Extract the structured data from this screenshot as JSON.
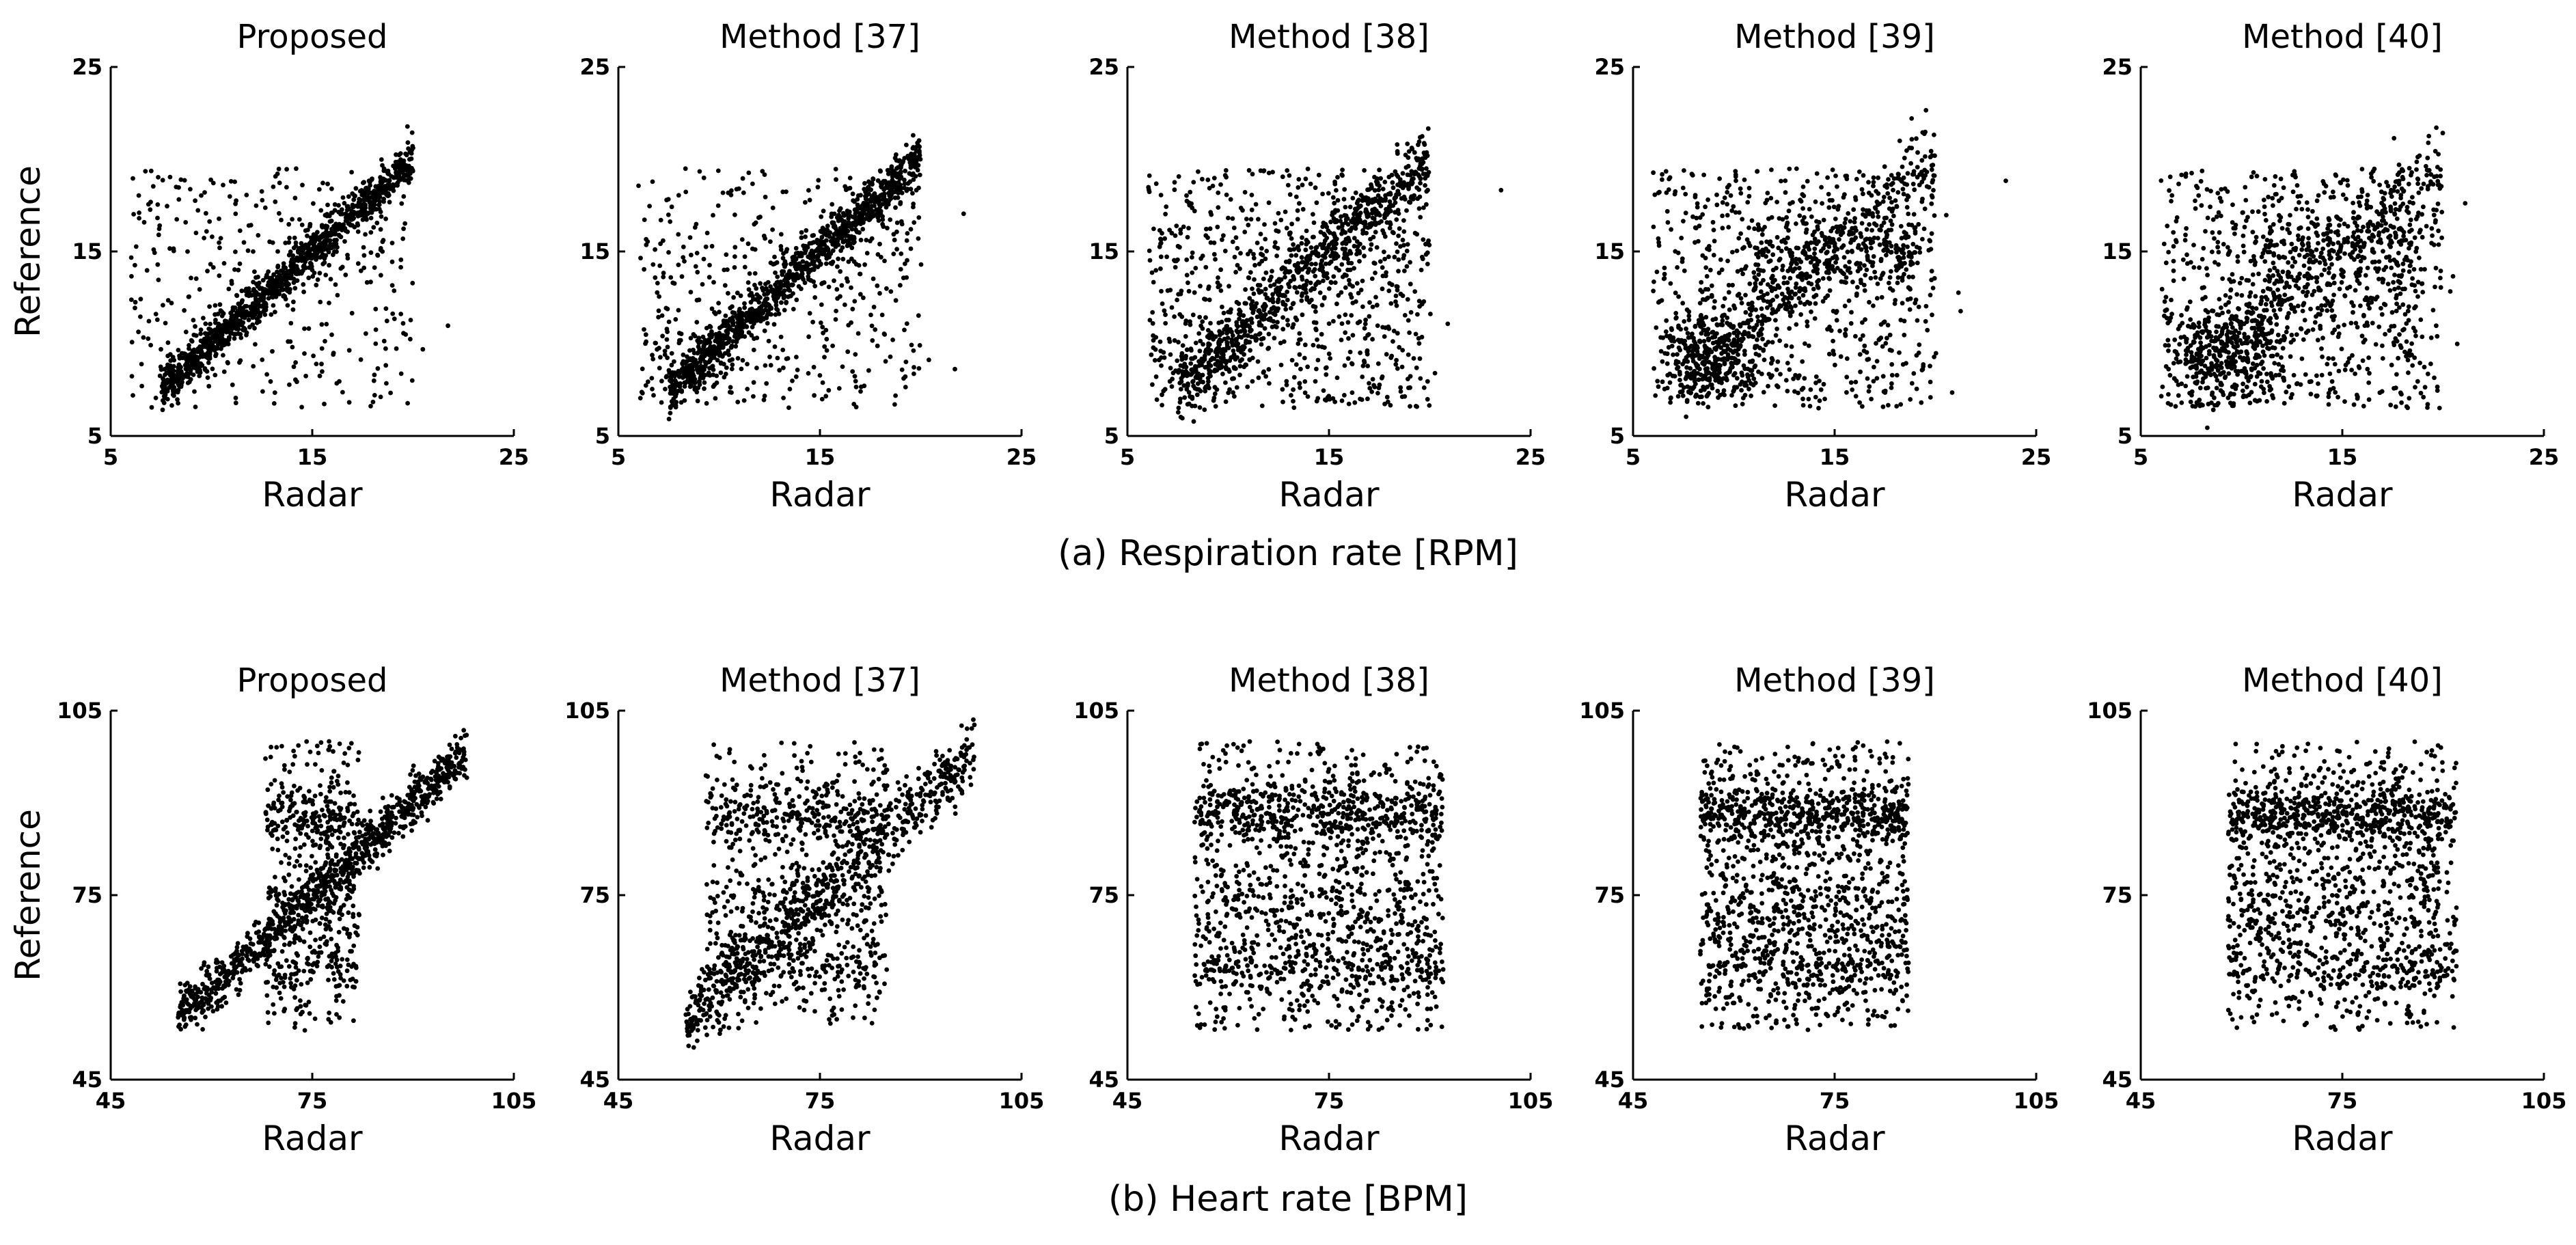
{
  "figure": {
    "captions": [
      "(a) Respiration rate [RPM]",
      "(b) Heart rate [BPM]"
    ]
  },
  "chart_data": [
    {
      "type": "scatter",
      "row": 0,
      "col": 0,
      "title": "Proposed",
      "xlabel": "Radar",
      "ylabel": "Reference",
      "xlim": [
        5,
        25
      ],
      "ylim": [
        5,
        25
      ],
      "xticks": [
        5,
        15,
        25
      ],
      "yticks": [
        5,
        15,
        25
      ],
      "grid": false,
      "pattern": {
        "kind": "rr",
        "diag": 0.74,
        "spread": 0.55,
        "uniform": 0.14,
        "band": 0.06,
        "seed": 11
      }
    },
    {
      "type": "scatter",
      "row": 0,
      "col": 1,
      "title": "Method [37]",
      "xlabel": "Radar",
      "ylabel": "",
      "xlim": [
        5,
        25
      ],
      "ylim": [
        5,
        25
      ],
      "xticks": [
        5,
        15,
        25
      ],
      "yticks": [
        5,
        15,
        25
      ],
      "grid": false,
      "pattern": {
        "kind": "rr",
        "diag": 0.66,
        "spread": 0.65,
        "uniform": 0.2,
        "band": 0.08,
        "seed": 23
      }
    },
    {
      "type": "scatter",
      "row": 0,
      "col": 2,
      "title": "Method [38]",
      "xlabel": "Radar",
      "ylabel": "",
      "xlim": [
        5,
        25
      ],
      "ylim": [
        5,
        25
      ],
      "xticks": [
        5,
        15,
        25
      ],
      "yticks": [
        5,
        15,
        25
      ],
      "grid": false,
      "pattern": {
        "kind": "rr",
        "diag": 0.45,
        "spread": 0.95,
        "uniform": 0.4,
        "band": 0.1,
        "seed": 37
      }
    },
    {
      "type": "scatter",
      "row": 0,
      "col": 3,
      "title": "Method [39]",
      "xlabel": "Radar",
      "ylabel": "",
      "xlim": [
        5,
        25
      ],
      "ylim": [
        5,
        25
      ],
      "xticks": [
        5,
        15,
        25
      ],
      "yticks": [
        5,
        15,
        25
      ],
      "grid": false,
      "pattern": {
        "kind": "rr",
        "diag": 0.26,
        "spread": 1.2,
        "uniform": 0.36,
        "band": 0.32,
        "seed": 41
      }
    },
    {
      "type": "scatter",
      "row": 0,
      "col": 4,
      "title": "Method [40]",
      "xlabel": "Radar",
      "ylabel": "",
      "xlim": [
        5,
        25
      ],
      "ylim": [
        5,
        25
      ],
      "xticks": [
        5,
        15,
        25
      ],
      "yticks": [
        5,
        15,
        25
      ],
      "grid": false,
      "pattern": {
        "kind": "rr",
        "diag": 0.2,
        "spread": 1.3,
        "uniform": 0.45,
        "band": 0.3,
        "seed": 53
      }
    },
    {
      "type": "scatter",
      "row": 1,
      "col": 0,
      "title": "Proposed",
      "xlabel": "Radar",
      "ylabel": "Reference",
      "xlim": [
        45,
        105
      ],
      "ylim": [
        45,
        105
      ],
      "xticks": [
        45,
        75,
        105
      ],
      "yticks": [
        45,
        75,
        105
      ],
      "grid": false,
      "pattern": {
        "kind": "hr",
        "diag": 0.62,
        "spread": 2.0,
        "uniform": 0.12,
        "band": 0.22,
        "cx": [
          68,
          82
        ],
        "seed": 61
      }
    },
    {
      "type": "scatter",
      "row": 1,
      "col": 1,
      "title": "Method [37]",
      "xlabel": "Radar",
      "ylabel": "",
      "xlim": [
        45,
        105
      ],
      "ylim": [
        45,
        105
      ],
      "xticks": [
        45,
        75,
        105
      ],
      "yticks": [
        45,
        75,
        105
      ],
      "grid": false,
      "pattern": {
        "kind": "hr",
        "diag": 0.45,
        "spread": 2.8,
        "uniform": 0.2,
        "band": 0.32,
        "cx": [
          58,
          85
        ],
        "seed": 73
      }
    },
    {
      "type": "scatter",
      "row": 1,
      "col": 2,
      "title": "Method [38]",
      "xlabel": "Radar",
      "ylabel": "",
      "xlim": [
        45,
        105
      ],
      "ylim": [
        45,
        105
      ],
      "xticks": [
        45,
        75,
        105
      ],
      "yticks": [
        45,
        75,
        105
      ],
      "grid": false,
      "pattern": {
        "kind": "hr",
        "diag": 0.0,
        "spread": 2.0,
        "uniform": 0.35,
        "band": 0.6,
        "cx": [
          55,
          92
        ],
        "seed": 89
      }
    },
    {
      "type": "scatter",
      "row": 1,
      "col": 3,
      "title": "Method [39]",
      "xlabel": "Radar",
      "ylabel": "",
      "xlim": [
        45,
        105
      ],
      "ylim": [
        45,
        105
      ],
      "xticks": [
        45,
        75,
        105
      ],
      "yticks": [
        45,
        75,
        105
      ],
      "grid": false,
      "pattern": {
        "kind": "hr",
        "diag": 0.0,
        "spread": 2.0,
        "uniform": 0.35,
        "band": 0.6,
        "cx": [
          55,
          86
        ],
        "seed": 97
      }
    },
    {
      "type": "scatter",
      "row": 1,
      "col": 4,
      "title": "Method [40]",
      "xlabel": "Radar",
      "ylabel": "",
      "xlim": [
        45,
        105
      ],
      "ylim": [
        45,
        105
      ],
      "xticks": [
        45,
        75,
        105
      ],
      "yticks": [
        45,
        75,
        105
      ],
      "grid": false,
      "pattern": {
        "kind": "hr",
        "diag": 0.0,
        "spread": 2.0,
        "uniform": 0.35,
        "band": 0.6,
        "cx": [
          58,
          92
        ],
        "seed": 101
      }
    }
  ]
}
